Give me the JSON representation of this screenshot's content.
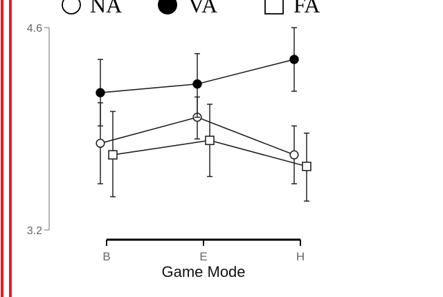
{
  "chart_data": {
    "type": "line",
    "xlabel": "Game Mode",
    "categories": [
      "B",
      "E",
      "H"
    ],
    "ylim": [
      3.2,
      4.6
    ],
    "yticks": [
      3.2,
      4.6
    ],
    "legend_placement": "top",
    "grid": false,
    "series": [
      {
        "name": "NA",
        "marker": "open-circle",
        "values": [
          3.8,
          3.98,
          3.72
        ],
        "err_low": [
          3.52,
          3.83,
          3.52
        ],
        "err_high": [
          4.08,
          4.12,
          3.92
        ]
      },
      {
        "name": "VA",
        "marker": "filled-circle",
        "values": [
          4.15,
          4.21,
          4.38
        ],
        "err_low": [
          3.92,
          3.98,
          4.16
        ],
        "err_high": [
          4.38,
          4.42,
          4.6
        ]
      },
      {
        "name": "FA",
        "marker": "open-square",
        "values": [
          3.72,
          3.82,
          3.64
        ],
        "err_low": [
          3.43,
          3.57,
          3.4
        ],
        "err_high": [
          4.02,
          4.07,
          3.87
        ]
      }
    ],
    "colors": {
      "line": "#222222",
      "marker_fill": "#ffffff",
      "axis": "#888888",
      "left_border": "#e8191e"
    }
  }
}
